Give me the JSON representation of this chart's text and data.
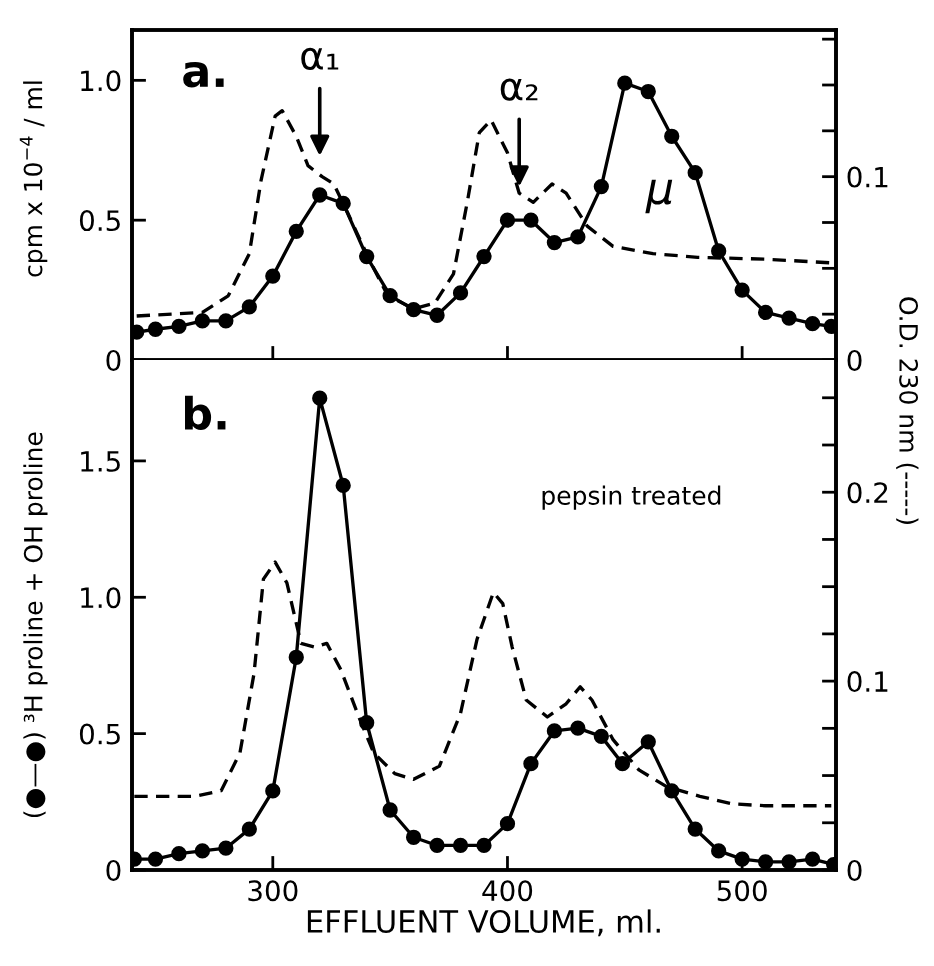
{
  "chart_data": [
    {
      "type": "line",
      "ylabel": "cpm x 10$^{−4}$ / ml",
      "xlim": [
        240,
        540
      ],
      "xticks": [
        {
          "value": 300,
          "label": null
        },
        {
          "value": 400,
          "label": null
        },
        {
          "value": 500,
          "label": null
        }
      ],
      "ylim": [
        0,
        1.18
      ],
      "yticks": [
        0,
        0.5,
        {
          "value": 1,
          "label": "1.0"
        }
      ],
      "y2lim": [
        0,
        0.18
      ],
      "y2ticks": [
        0,
        {
          "value": 0.025,
          "label": null
        },
        {
          "value": 0.05,
          "label": null
        },
        {
          "value": 0.075,
          "label": null
        },
        0.1,
        {
          "value": 0.125,
          "label": null
        },
        {
          "value": 0.15,
          "label": null
        },
        {
          "value": 0.175,
          "label": null
        }
      ],
      "tick_labels": "y",
      "annotations": [
        "a.",
        {
          "text": "α₁",
          "x": 320,
          "y": 0.71
        },
        {
          "text": "α₂",
          "x": 405,
          "y": 0.6
        },
        "μ"
      ],
      "series": [
        {
          "color": "#000000",
          "marker": "circle",
          "line_style": "solid",
          "x": [
            242,
            250,
            260,
            270,
            280,
            290,
            300,
            310,
            320,
            330,
            340,
            350,
            360,
            370,
            380,
            390,
            400,
            410,
            420,
            430,
            440,
            450,
            460,
            470,
            480,
            490,
            500,
            510,
            520,
            530,
            538
          ],
          "values": [
            0.1,
            0.11,
            0.12,
            0.14,
            0.14,
            0.19,
            0.3,
            0.46,
            0.59,
            0.56,
            0.37,
            0.23,
            0.18,
            0.16,
            0.24,
            0.37,
            0.5,
            0.5,
            0.42,
            0.44,
            0.62,
            0.99,
            0.96,
            0.8,
            0.67,
            0.39,
            0.25,
            0.17,
            0.15,
            0.13,
            0.12
          ]
        },
        {
          "color": "#000000",
          "marker": "none",
          "line_style": "dashed",
          "axis": "y2",
          "x": [
            242,
            270,
            281,
            290,
            295,
            301,
            304,
            310,
            315,
            321,
            326,
            332,
            341,
            349,
            360,
            369,
            377,
            383,
            388,
            393,
            400,
            405,
            411,
            419,
            425,
            434,
            445,
            462,
            481,
            510,
            538
          ],
          "values": [
            0.024,
            0.026,
            0.035,
            0.058,
            0.098,
            0.133,
            0.136,
            0.122,
            0.106,
            0.1,
            0.096,
            0.08,
            0.055,
            0.035,
            0.028,
            0.031,
            0.047,
            0.087,
            0.124,
            0.131,
            0.113,
            0.091,
            0.086,
            0.096,
            0.091,
            0.073,
            0.062,
            0.058,
            0.056,
            0.055,
            0.053
          ]
        }
      ]
    },
    {
      "type": "line",
      "ylabel": "(●—●) ³H proline + OH proline",
      "y2label": "O.D. 230 nm (-----)",
      "xlabel": "EFFLUENT VOLUME, ml.",
      "xlim": [
        240,
        540
      ],
      "xticks": [
        300,
        400,
        500
      ],
      "ylim": [
        0,
        1.87
      ],
      "yticks": [
        0,
        0.5,
        {
          "value": 1,
          "label": "1.0"
        },
        1.5
      ],
      "y2lim": [
        0,
        0.27
      ],
      "y2ticks": [
        0,
        {
          "value": 0.025,
          "label": null
        },
        {
          "value": 0.05,
          "label": null
        },
        {
          "value": 0.075,
          "label": null
        },
        0.1,
        {
          "value": 0.125,
          "label": null
        },
        {
          "value": 0.15,
          "label": null
        },
        {
          "value": 0.175,
          "label": null
        },
        0.2,
        {
          "value": 0.225,
          "label": null
        },
        {
          "value": 0.25,
          "label": null
        }
      ],
      "annotations": [
        "b.",
        "pepsin treated"
      ],
      "series": [
        {
          "color": "#000000",
          "marker": "circle",
          "line_style": "solid",
          "x": [
            241,
            250,
            260,
            270,
            280,
            290,
            300,
            310,
            320,
            330,
            340,
            350,
            360,
            370,
            380,
            390,
            400,
            410,
            420,
            430,
            440,
            449,
            460,
            470,
            480,
            490,
            500,
            510,
            520,
            530,
            539
          ],
          "values": [
            0.04,
            0.04,
            0.06,
            0.07,
            0.08,
            0.15,
            0.29,
            0.78,
            1.73,
            1.41,
            0.54,
            0.22,
            0.12,
            0.09,
            0.09,
            0.09,
            0.17,
            0.39,
            0.51,
            0.52,
            0.49,
            0.39,
            0.47,
            0.29,
            0.15,
            0.07,
            0.04,
            0.03,
            0.03,
            0.04,
            0.02
          ]
        },
        {
          "color": "#000000",
          "marker": "none",
          "line_style": "dashed",
          "axis": "y2",
          "x": [
            241,
            267,
            278,
            286,
            292,
            296,
            301,
            306,
            312,
            318,
            323,
            329,
            337,
            343,
            352,
            360,
            371,
            380,
            387,
            394,
            398,
            402,
            408,
            417,
            425,
            431,
            436,
            445,
            456,
            468,
            482,
            496,
            510,
            538
          ],
          "values": [
            0.039,
            0.039,
            0.042,
            0.062,
            0.104,
            0.154,
            0.163,
            0.152,
            0.12,
            0.118,
            0.12,
            0.106,
            0.08,
            0.062,
            0.051,
            0.048,
            0.055,
            0.083,
            0.122,
            0.147,
            0.141,
            0.118,
            0.09,
            0.081,
            0.088,
            0.097,
            0.09,
            0.069,
            0.053,
            0.044,
            0.039,
            0.035,
            0.034,
            0.034
          ]
        }
      ]
    }
  ]
}
